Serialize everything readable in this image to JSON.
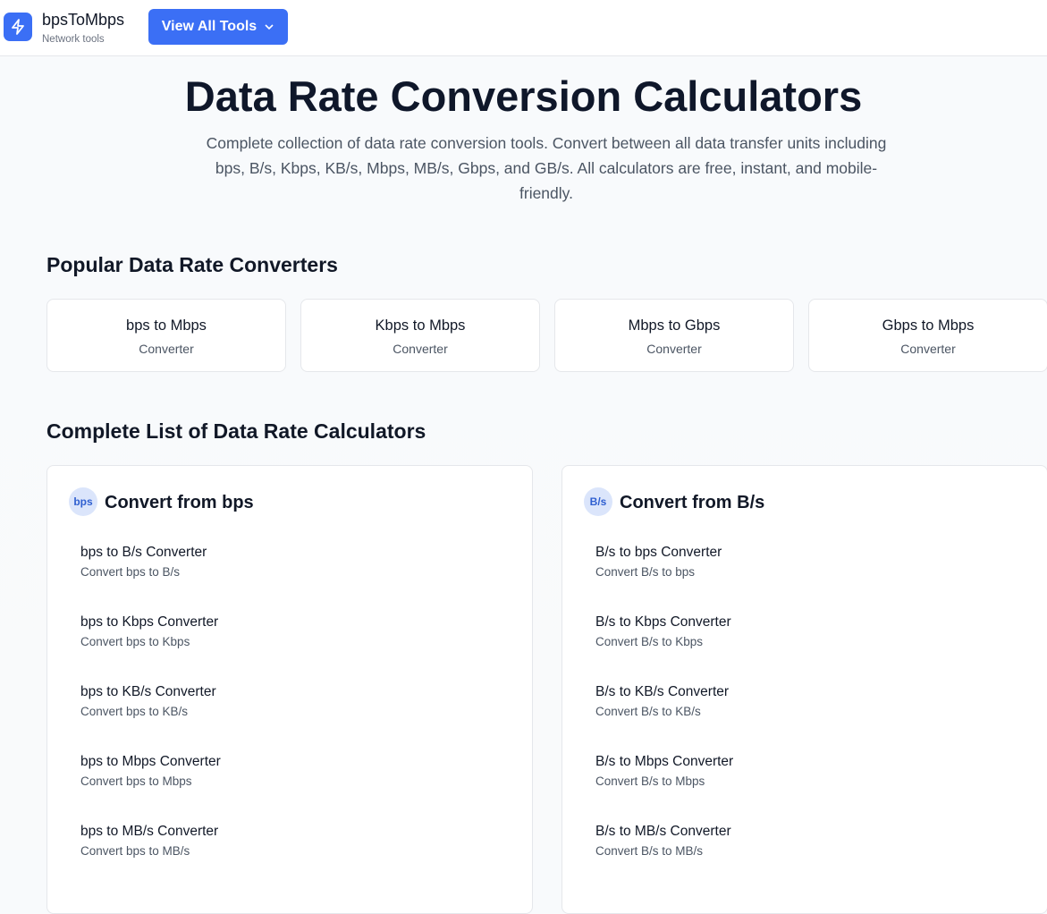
{
  "header": {
    "brand": "bpsToMbps",
    "tagline": "Network tools",
    "menu_button": "View All Tools"
  },
  "hero": {
    "title": "Data Rate Conversion Calculators",
    "subtitle": "Complete collection of data rate conversion tools. Convert between all data transfer units including bps, B/s, Kbps, KB/s, Mbps, MB/s, Gbps, and GB/s. All calculators are free, instant, and mobile-friendly."
  },
  "popular": {
    "heading": "Popular Data Rate Converters",
    "cards": [
      {
        "title": "bps to Mbps",
        "subtitle": "Converter"
      },
      {
        "title": "Kbps to Mbps",
        "subtitle": "Converter"
      },
      {
        "title": "Mbps to Gbps",
        "subtitle": "Converter"
      },
      {
        "title": "Gbps to Mbps",
        "subtitle": "Converter"
      }
    ]
  },
  "complete_list": {
    "heading": "Complete List of Data Rate Calculators",
    "groups": [
      {
        "badge": "bps",
        "title": "Convert from bps",
        "items": [
          {
            "title": "bps to B/s Converter",
            "description": "Convert bps to B/s"
          },
          {
            "title": "bps to Kbps Converter",
            "description": "Convert bps to Kbps"
          },
          {
            "title": "bps to KB/s Converter",
            "description": "Convert bps to KB/s"
          },
          {
            "title": "bps to Mbps Converter",
            "description": "Convert bps to Mbps"
          },
          {
            "title": "bps to MB/s Converter",
            "description": "Convert bps to MB/s"
          }
        ]
      },
      {
        "badge": "B/s",
        "title": "Convert from B/s",
        "items": [
          {
            "title": "B/s to bps Converter",
            "description": "Convert B/s to bps"
          },
          {
            "title": "B/s to Kbps Converter",
            "description": "Convert B/s to Kbps"
          },
          {
            "title": "B/s to KB/s Converter",
            "description": "Convert B/s to KB/s"
          },
          {
            "title": "B/s to Mbps Converter",
            "description": "Convert B/s to Mbps"
          },
          {
            "title": "B/s to MB/s Converter",
            "description": "Convert B/s to MB/s"
          }
        ]
      }
    ]
  }
}
